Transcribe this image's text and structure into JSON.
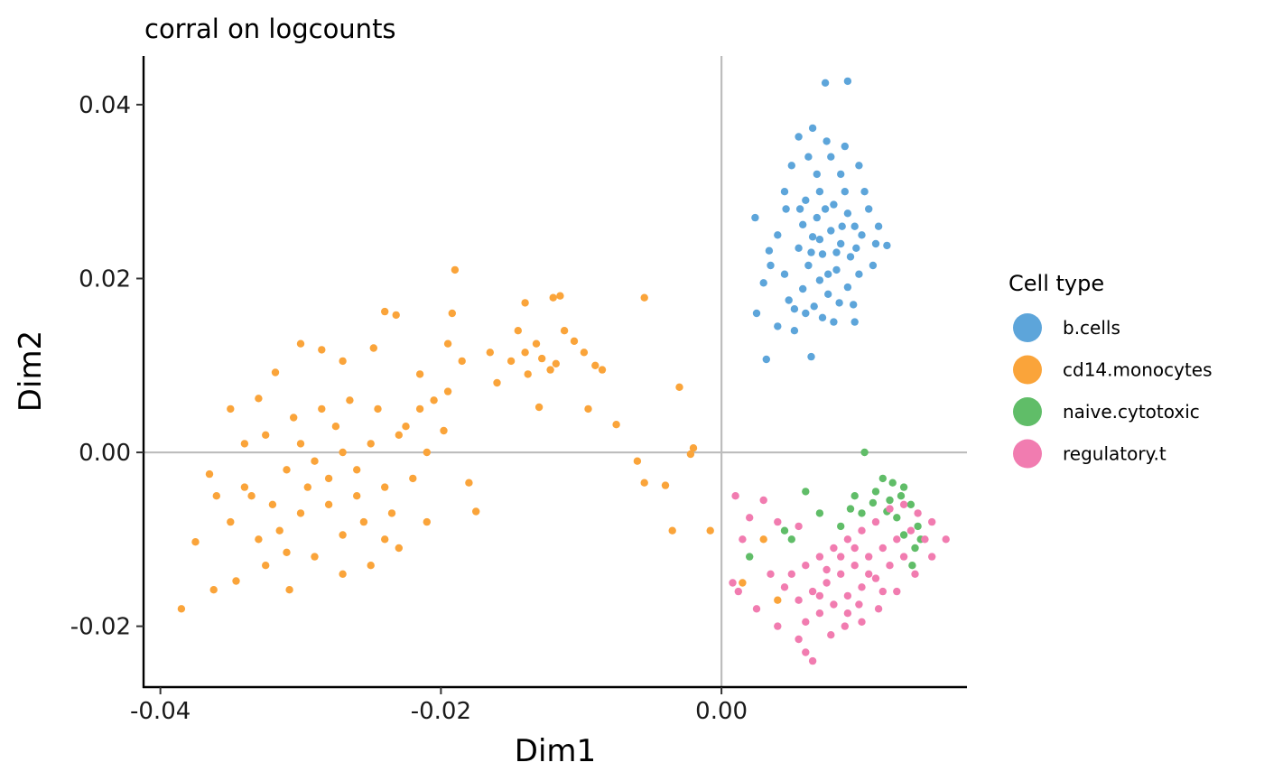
{
  "chart_data": {
    "type": "scatter",
    "title": "corral on logcounts",
    "xlabel": "Dim1",
    "ylabel": "Dim2",
    "xlim": [
      -0.0412,
      0.0175
    ],
    "ylim": [
      -0.027,
      0.0456
    ],
    "x_ticks": [
      {
        "value": -0.04,
        "label": "-0.04"
      },
      {
        "value": -0.02,
        "label": "-0.02"
      },
      {
        "value": 0.0,
        "label": "0.00"
      }
    ],
    "y_ticks": [
      {
        "value": 0.04,
        "label": "0.04"
      },
      {
        "value": 0.02,
        "label": "0.02"
      },
      {
        "value": 0.0,
        "label": "0.00"
      },
      {
        "value": -0.02,
        "label": "-0.02"
      }
    ],
    "reference_lines": {
      "x": 0.0,
      "y": 0.0
    },
    "grid": false,
    "legend": {
      "title": "Cell type",
      "position": "right"
    },
    "series": [
      {
        "name": "b.cells",
        "color": "#5DA5DA",
        "points": [
          [
            0.0074,
            0.0425
          ],
          [
            0.009,
            0.0427
          ],
          [
            0.0055,
            0.0363
          ],
          [
            0.0065,
            0.0373
          ],
          [
            0.0046,
            0.028
          ],
          [
            0.0034,
            0.0232
          ],
          [
            0.0025,
            0.016
          ],
          [
            0.0032,
            0.0107
          ],
          [
            0.0064,
            0.011
          ],
          [
            0.011,
            0.024
          ],
          [
            0.0118,
            0.0238
          ],
          [
            0.0095,
            0.015
          ],
          [
            0.0024,
            0.027
          ],
          [
            0.004,
            0.0145
          ],
          [
            0.0052,
            0.014
          ],
          [
            0.0075,
            0.0358
          ],
          [
            0.0088,
            0.0352
          ],
          [
            0.005,
            0.033
          ],
          [
            0.0085,
            0.032
          ],
          [
            0.007,
            0.03
          ],
          [
            0.006,
            0.029
          ],
          [
            0.008,
            0.0285
          ],
          [
            0.0068,
            0.027
          ],
          [
            0.009,
            0.0275
          ],
          [
            0.0058,
            0.0262
          ],
          [
            0.0078,
            0.0255
          ],
          [
            0.0095,
            0.026
          ],
          [
            0.0065,
            0.0248
          ],
          [
            0.0085,
            0.024
          ],
          [
            0.01,
            0.025
          ],
          [
            0.0055,
            0.0235
          ],
          [
            0.0072,
            0.0228
          ],
          [
            0.0092,
            0.0225
          ],
          [
            0.0062,
            0.0215
          ],
          [
            0.0082,
            0.021
          ],
          [
            0.0045,
            0.0205
          ],
          [
            0.007,
            0.0198
          ],
          [
            0.0098,
            0.0205
          ],
          [
            0.0058,
            0.0188
          ],
          [
            0.0076,
            0.0182
          ],
          [
            0.009,
            0.019
          ],
          [
            0.0048,
            0.0175
          ],
          [
            0.0066,
            0.0168
          ],
          [
            0.0084,
            0.0172
          ],
          [
            0.0072,
            0.0155
          ],
          [
            0.006,
            0.016
          ],
          [
            0.008,
            0.015
          ],
          [
            0.0105,
            0.028
          ],
          [
            0.0102,
            0.03
          ],
          [
            0.004,
            0.025
          ],
          [
            0.0035,
            0.0215
          ],
          [
            0.0108,
            0.0215
          ],
          [
            0.0045,
            0.03
          ],
          [
            0.0098,
            0.033
          ],
          [
            0.0062,
            0.034
          ],
          [
            0.003,
            0.0195
          ],
          [
            0.0112,
            0.026
          ],
          [
            0.0052,
            0.0165
          ],
          [
            0.0094,
            0.017
          ],
          [
            0.0068,
            0.032
          ],
          [
            0.0078,
            0.034
          ],
          [
            0.0088,
            0.03
          ],
          [
            0.0074,
            0.028
          ],
          [
            0.0064,
            0.023
          ],
          [
            0.0086,
            0.026
          ],
          [
            0.0076,
            0.0205
          ],
          [
            0.0056,
            0.028
          ],
          [
            0.0096,
            0.0235
          ],
          [
            0.007,
            0.0245
          ],
          [
            0.0082,
            0.023
          ]
        ]
      },
      {
        "name": "cd14.monocytes",
        "color": "#FAA43A",
        "points": [
          [
            -0.0385,
            -0.018
          ],
          [
            -0.0362,
            -0.0158
          ],
          [
            -0.0375,
            -0.0103
          ],
          [
            -0.0346,
            -0.0148
          ],
          [
            -0.0308,
            -0.0158
          ],
          [
            -0.035,
            0.005
          ],
          [
            -0.033,
            0.0062
          ],
          [
            -0.0318,
            0.0092
          ],
          [
            -0.03,
            0.0125
          ],
          [
            -0.0285,
            0.0118
          ],
          [
            -0.027,
            0.0105
          ],
          [
            -0.0248,
            0.012
          ],
          [
            -0.024,
            0.0162
          ],
          [
            -0.0232,
            0.0158
          ],
          [
            -0.0215,
            0.009
          ],
          [
            -0.0205,
            0.006
          ],
          [
            -0.0198,
            0.0025
          ],
          [
            -0.018,
            -0.0035
          ],
          [
            -0.0175,
            -0.0068
          ],
          [
            -0.021,
            -0.008
          ],
          [
            -0.023,
            -0.011
          ],
          [
            -0.025,
            -0.013
          ],
          [
            -0.027,
            -0.014
          ],
          [
            -0.029,
            -0.012
          ],
          [
            -0.031,
            -0.0115
          ],
          [
            -0.033,
            -0.01
          ],
          [
            -0.035,
            -0.008
          ],
          [
            -0.036,
            -0.005
          ],
          [
            -0.0365,
            -0.0025
          ],
          [
            -0.034,
            -0.004
          ],
          [
            -0.032,
            -0.006
          ],
          [
            -0.03,
            -0.007
          ],
          [
            -0.028,
            -0.006
          ],
          [
            -0.026,
            -0.005
          ],
          [
            -0.024,
            -0.004
          ],
          [
            -0.022,
            -0.003
          ],
          [
            -0.021,
            0.0
          ],
          [
            -0.0225,
            0.003
          ],
          [
            -0.0245,
            0.005
          ],
          [
            -0.0265,
            0.006
          ],
          [
            -0.0285,
            0.005
          ],
          [
            -0.0305,
            0.004
          ],
          [
            -0.0325,
            0.002
          ],
          [
            -0.034,
            0.001
          ],
          [
            -0.031,
            -0.002
          ],
          [
            -0.029,
            -0.001
          ],
          [
            -0.027,
            0.0
          ],
          [
            -0.025,
            0.001
          ],
          [
            -0.023,
            0.002
          ],
          [
            -0.028,
            -0.003
          ],
          [
            -0.03,
            0.001
          ],
          [
            -0.026,
            -0.002
          ],
          [
            -0.0275,
            0.003
          ],
          [
            -0.0295,
            -0.004
          ],
          [
            -0.0255,
            -0.008
          ],
          [
            -0.0315,
            -0.009
          ],
          [
            -0.0335,
            -0.005
          ],
          [
            -0.0235,
            -0.007
          ],
          [
            -0.0215,
            0.005
          ],
          [
            -0.0195,
            0.007
          ],
          [
            -0.019,
            0.021
          ],
          [
            -0.0185,
            0.0105
          ],
          [
            -0.0192,
            0.016
          ],
          [
            -0.0195,
            0.0125
          ],
          [
            -0.0165,
            0.0115
          ],
          [
            -0.016,
            0.008
          ],
          [
            -0.015,
            0.0105
          ],
          [
            -0.0145,
            0.014
          ],
          [
            -0.014,
            0.0115
          ],
          [
            -0.0138,
            0.009
          ],
          [
            -0.014,
            0.0172
          ],
          [
            -0.012,
            0.0178
          ],
          [
            -0.0115,
            0.018
          ],
          [
            -0.0132,
            0.0125
          ],
          [
            -0.0128,
            0.0108
          ],
          [
            -0.0122,
            0.0095
          ],
          [
            -0.0118,
            0.0102
          ],
          [
            -0.0112,
            0.014
          ],
          [
            -0.0105,
            0.0128
          ],
          [
            -0.013,
            0.0052
          ],
          [
            -0.0098,
            0.0115
          ],
          [
            -0.009,
            0.01
          ],
          [
            -0.0085,
            0.0095
          ],
          [
            -0.0075,
            0.0032
          ],
          [
            -0.0095,
            0.005
          ],
          [
            -0.0055,
            0.0178
          ],
          [
            -0.006,
            -0.001
          ],
          [
            -0.0055,
            -0.0035
          ],
          [
            -0.004,
            -0.0038
          ],
          [
            -0.003,
            0.0075
          ],
          [
            -0.002,
            0.0005
          ],
          [
            -0.0022,
            -0.0002
          ],
          [
            -0.0035,
            -0.009
          ],
          [
            -0.0008,
            -0.009
          ],
          [
            0.003,
            -0.01
          ],
          [
            0.0015,
            -0.015
          ],
          [
            0.004,
            -0.017
          ],
          [
            -0.0325,
            -0.013
          ],
          [
            -0.027,
            -0.0095
          ],
          [
            -0.024,
            -0.01
          ]
        ]
      },
      {
        "name": "naive.cytotoxic",
        "color": "#60BD68",
        "points": [
          [
            0.0102,
            0.0
          ],
          [
            0.0115,
            -0.003
          ],
          [
            0.0122,
            -0.0035
          ],
          [
            0.013,
            -0.004
          ],
          [
            0.0135,
            -0.006
          ],
          [
            0.014,
            -0.0085
          ],
          [
            0.0138,
            -0.011
          ],
          [
            0.0142,
            -0.01
          ],
          [
            0.0128,
            -0.005
          ],
          [
            0.011,
            -0.0045
          ],
          [
            0.0095,
            -0.005
          ],
          [
            0.012,
            -0.0055
          ],
          [
            0.01,
            -0.007
          ],
          [
            0.0085,
            -0.0085
          ],
          [
            0.0125,
            -0.0075
          ],
          [
            0.006,
            -0.0045
          ],
          [
            0.007,
            -0.007
          ],
          [
            0.0045,
            -0.009
          ],
          [
            0.002,
            -0.012
          ],
          [
            0.005,
            -0.01
          ],
          [
            0.013,
            -0.0095
          ],
          [
            0.0118,
            -0.0068
          ],
          [
            0.0108,
            -0.0058
          ],
          [
            0.0092,
            -0.0065
          ],
          [
            0.0136,
            -0.013
          ]
        ]
      },
      {
        "name": "regulatory.t",
        "color": "#F17CB0",
        "points": [
          [
            0.001,
            -0.005
          ],
          [
            0.003,
            -0.0055
          ],
          [
            0.002,
            -0.0075
          ],
          [
            0.004,
            -0.008
          ],
          [
            0.0055,
            -0.0085
          ],
          [
            0.0015,
            -0.01
          ],
          [
            0.0008,
            -0.015
          ],
          [
            0.0012,
            -0.016
          ],
          [
            0.0035,
            -0.014
          ],
          [
            0.0045,
            -0.0155
          ],
          [
            0.0025,
            -0.018
          ],
          [
            0.004,
            -0.02
          ],
          [
            0.0055,
            -0.0215
          ],
          [
            0.006,
            -0.023
          ],
          [
            0.0065,
            -0.024
          ],
          [
            0.0078,
            -0.021
          ],
          [
            0.0088,
            -0.02
          ],
          [
            0.01,
            -0.0195
          ],
          [
            0.0112,
            -0.018
          ],
          [
            0.0125,
            -0.016
          ],
          [
            0.0138,
            -0.014
          ],
          [
            0.015,
            -0.012
          ],
          [
            0.016,
            -0.01
          ],
          [
            0.015,
            -0.008
          ],
          [
            0.014,
            -0.007
          ],
          [
            0.013,
            -0.006
          ],
          [
            0.012,
            -0.0065
          ],
          [
            0.011,
            -0.008
          ],
          [
            0.01,
            -0.009
          ],
          [
            0.009,
            -0.01
          ],
          [
            0.008,
            -0.011
          ],
          [
            0.007,
            -0.012
          ],
          [
            0.006,
            -0.013
          ],
          [
            0.005,
            -0.014
          ],
          [
            0.0065,
            -0.016
          ],
          [
            0.0075,
            -0.015
          ],
          [
            0.0085,
            -0.014
          ],
          [
            0.0095,
            -0.013
          ],
          [
            0.0105,
            -0.012
          ],
          [
            0.0115,
            -0.011
          ],
          [
            0.0125,
            -0.01
          ],
          [
            0.0135,
            -0.009
          ],
          [
            0.0145,
            -0.01
          ],
          [
            0.012,
            -0.013
          ],
          [
            0.011,
            -0.0145
          ],
          [
            0.01,
            -0.0155
          ],
          [
            0.009,
            -0.0165
          ],
          [
            0.008,
            -0.0175
          ],
          [
            0.007,
            -0.0185
          ],
          [
            0.006,
            -0.0195
          ],
          [
            0.0085,
            -0.012
          ],
          [
            0.0095,
            -0.011
          ],
          [
            0.0075,
            -0.0135
          ],
          [
            0.0105,
            -0.014
          ],
          [
            0.009,
            -0.0185
          ],
          [
            0.007,
            -0.0165
          ],
          [
            0.0115,
            -0.016
          ],
          [
            0.013,
            -0.012
          ],
          [
            0.0055,
            -0.017
          ],
          [
            0.0098,
            -0.0175
          ]
        ]
      }
    ]
  }
}
